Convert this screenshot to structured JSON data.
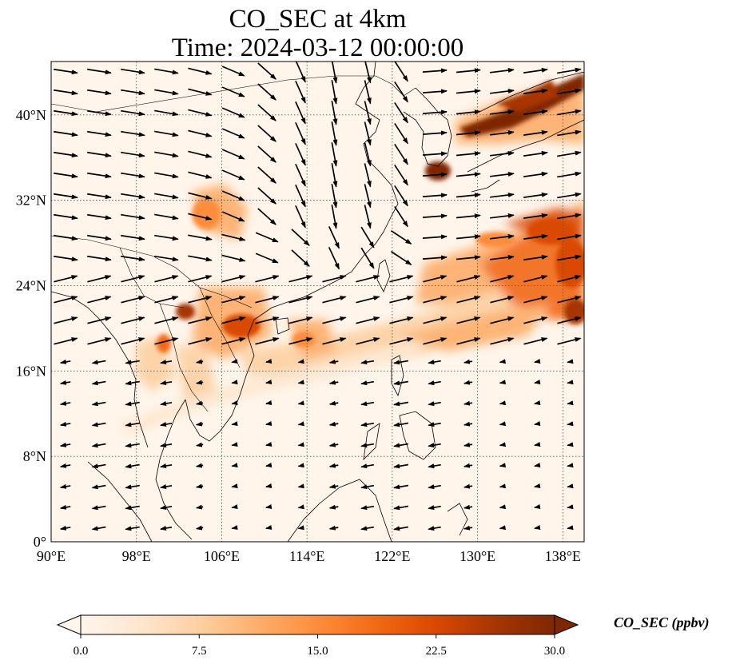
{
  "title_line1": "CO_SEC at 4km",
  "title_line2": "Time: 2024-03-12 00:00:00",
  "colorbar": {
    "label": "CO_SEC (ppbv)",
    "min": 0,
    "max": 30,
    "tick_labels": [
      "0.0",
      "7.5",
      "15.0",
      "22.5",
      "30.0"
    ],
    "ticks": [
      0,
      7.5,
      15,
      22.5,
      30
    ],
    "extend": "both",
    "colormap": [
      "#fff5eb",
      "#fee6ce",
      "#fdd0a2",
      "#fdae6b",
      "#fd8d3c",
      "#f16913",
      "#d94801",
      "#a63603",
      "#7f2704"
    ]
  },
  "map": {
    "lon_range": [
      90,
      140
    ],
    "lat_range": [
      0,
      45
    ],
    "lon_ticks": [
      90,
      98,
      106,
      114,
      122,
      130,
      138
    ],
    "lon_tick_labels": [
      "90°E",
      "98°E",
      "106°E",
      "114°E",
      "122°E",
      "130°E",
      "138°E"
    ],
    "lat_ticks": [
      0,
      8,
      16,
      24,
      32,
      40
    ],
    "lat_tick_labels": [
      "0°",
      "8°N",
      "16°N",
      "24°N",
      "32°N",
      "40°N"
    ],
    "gridlines": "dotted",
    "features": [
      "coastlines",
      "country-borders",
      "wind-vectors"
    ]
  }
}
